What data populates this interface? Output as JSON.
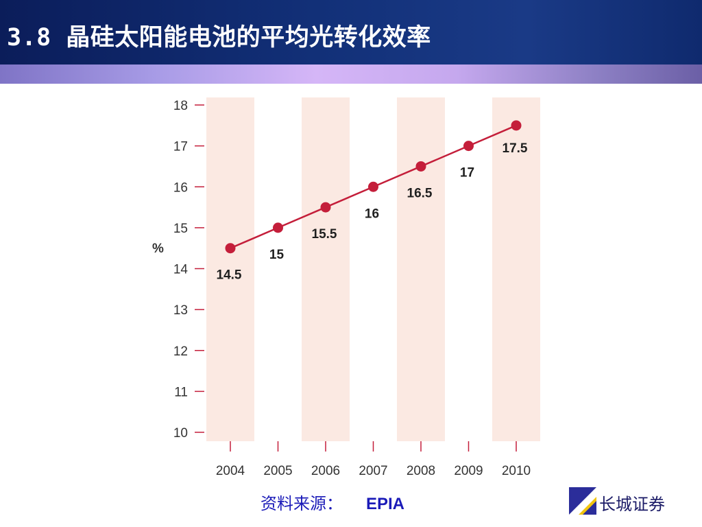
{
  "header": {
    "title": "3.8 晶硅太阳能电池的平均光转化效率"
  },
  "chart_data": {
    "type": "line",
    "x": [
      "2004",
      "2005",
      "2006",
      "2007",
      "2008",
      "2009",
      "2010"
    ],
    "series": [
      {
        "values": [
          14.5,
          15,
          15.5,
          16,
          16.5,
          17,
          17.5
        ]
      }
    ],
    "data_labels": [
      "14.5",
      "15",
      "15.5",
      "16",
      "16.5",
      "17",
      "17.5"
    ],
    "ylabel": "%",
    "xlabel": "",
    "ylim": [
      10,
      18
    ],
    "yticks": [
      10,
      11,
      12,
      13,
      14,
      15,
      16,
      17,
      18
    ],
    "line_color": "#c41e3a",
    "band_color": "#fbe9e2",
    "shaded_years": [
      "2004",
      "2006",
      "2008",
      "2010"
    ]
  },
  "footer": {
    "source_label": "资料来源：",
    "source_name": "EPIA",
    "brand": "长城证券"
  },
  "colors": {
    "header_bg": "#123078",
    "band": "#c5a8ee",
    "source_text": "#1b1bb8"
  }
}
